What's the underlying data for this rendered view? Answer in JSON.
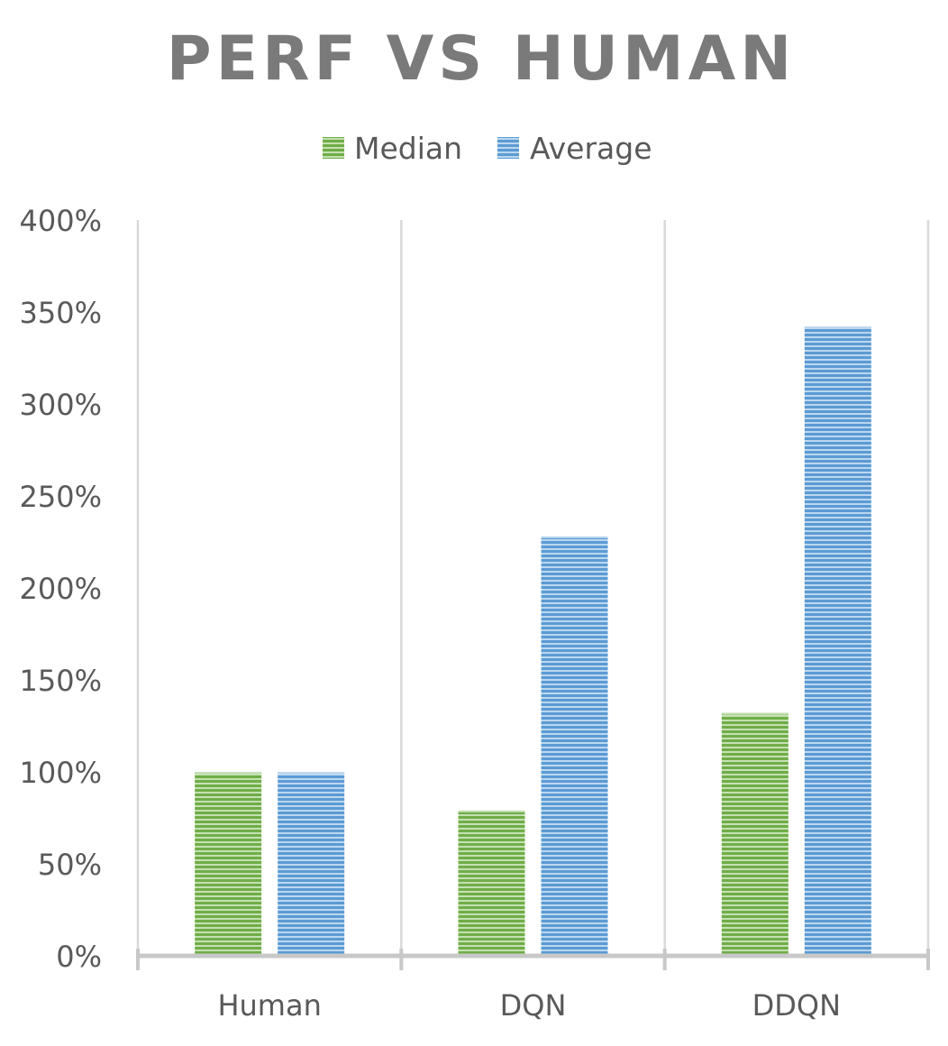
{
  "chart_data": {
    "type": "bar",
    "title": "PERF VS HUMAN",
    "categories": [
      "Human",
      "DQN",
      "DDQN"
    ],
    "series": [
      {
        "name": "Median",
        "values": [
          1.0,
          0.79,
          1.32
        ],
        "color": "#70ad47",
        "stripe": "#c5e0b4"
      },
      {
        "name": "Average",
        "values": [
          1.0,
          2.28,
          3.42
        ],
        "color": "#5b9bd5",
        "stripe": "#bdd7ee"
      }
    ],
    "yaxis": {
      "min": 0,
      "max": 4,
      "ticks": [
        0,
        0.5,
        1.0,
        1.5,
        2.0,
        2.5,
        3.0,
        3.5,
        4.0
      ],
      "tick_labels": [
        "0%",
        "50%",
        "100%",
        "150%",
        "200%",
        "250%",
        "300%",
        "350%",
        "400%"
      ],
      "format": "percent"
    },
    "xlabel": "",
    "ylabel": "",
    "legend": "top",
    "grid": "vertical category separators"
  }
}
